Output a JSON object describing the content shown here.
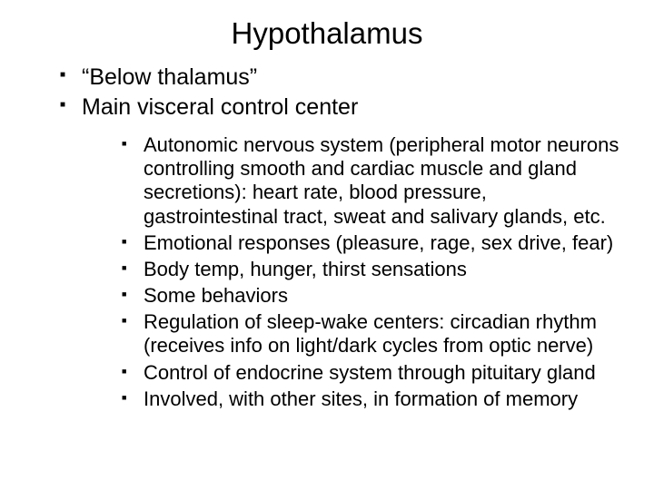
{
  "title": "Hypothalamus",
  "bullets": {
    "b0": "“Below thalamus”",
    "b1": "Main visceral control center",
    "sub": {
      "s0": "Autonomic nervous system (peripheral motor neurons controlling smooth and cardiac muscle and gland secretions): heart rate, blood pressure, gastrointestinal tract, sweat and salivary glands, etc.",
      "s1": "Emotional responses (pleasure, rage, sex drive, fear)",
      "s2": "Body temp, hunger, thirst sensations",
      "s3": "Some behaviors",
      "s4": "Regulation of sleep-wake centers: circadian rhythm (receives info on light/dark cycles from optic nerve)",
      "s5": "Control of endocrine system through pituitary gland",
      "s6": "Involved, with other sites, in formation of memory"
    }
  },
  "colors": {
    "background": "#ffffff",
    "text": "#000000",
    "bullet": "#000000"
  },
  "fonts": {
    "title_size_pt": 33,
    "level1_size_pt": 25,
    "level2_size_pt": 22,
    "family": "Arial"
  }
}
